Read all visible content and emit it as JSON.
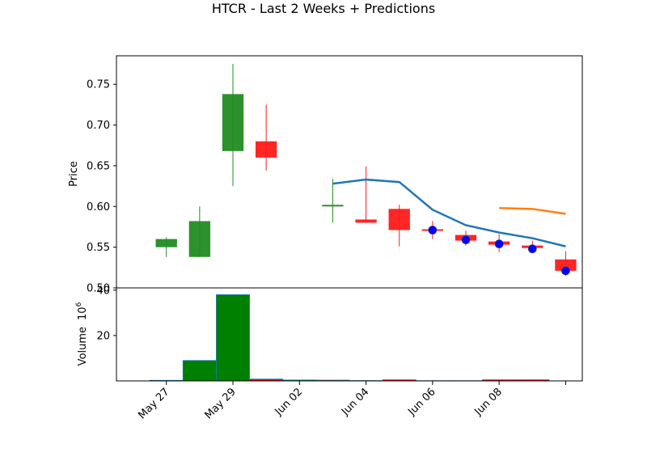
{
  "chart_data": {
    "title": "HTCR - Last 2 Weeks + Predictions",
    "x_ticks": [
      "May 27",
      "May 29",
      "Jun 02",
      "Jun 04",
      "Jun 06",
      "Jun 08"
    ],
    "price_panel": {
      "type": "candlestick",
      "ylabel": "Price",
      "ylim": [
        0.5,
        0.785
      ],
      "y_ticks": [
        "0.50",
        "0.55",
        "0.60",
        "0.65",
        "0.70",
        "0.75"
      ],
      "colors": {
        "up": "#228B22",
        "down": "#ff1a1a",
        "line_blue": "#1f77b4",
        "line_orange": "#ff7f0e",
        "marker": "#0000ff"
      },
      "candles": [
        {
          "x": 1,
          "open": 0.55,
          "high": 0.562,
          "low": 0.538,
          "close": 0.56
        },
        {
          "x": 2,
          "open": 0.538,
          "high": 0.6,
          "low": 0.538,
          "close": 0.582
        },
        {
          "x": 3,
          "open": 0.668,
          "high": 0.775,
          "low": 0.625,
          "close": 0.738
        },
        {
          "x": 4,
          "open": 0.68,
          "high": 0.725,
          "low": 0.644,
          "close": 0.66
        },
        {
          "x": 6,
          "open": 0.6,
          "high": 0.634,
          "low": 0.58,
          "close": 0.602
        },
        {
          "x": 7,
          "open": 0.584,
          "high": 0.649,
          "low": 0.58,
          "close": 0.58
        },
        {
          "x": 8,
          "open": 0.597,
          "high": 0.602,
          "low": 0.551,
          "close": 0.571
        },
        {
          "x": 9,
          "open": 0.572,
          "high": 0.582,
          "low": 0.56,
          "close": 0.57
        },
        {
          "x": 10,
          "open": 0.565,
          "high": 0.57,
          "low": 0.552,
          "close": 0.558
        },
        {
          "x": 11,
          "open": 0.557,
          "high": 0.566,
          "low": 0.544,
          "close": 0.553
        },
        {
          "x": 12,
          "open": 0.552,
          "high": 0.558,
          "low": 0.545,
          "close": 0.549
        },
        {
          "x": 13,
          "open": 0.535,
          "high": 0.545,
          "low": 0.515,
          "close": 0.521
        }
      ],
      "blue_line": [
        [
          6,
          0.628
        ],
        [
          7,
          0.633
        ],
        [
          8,
          0.63
        ],
        [
          9,
          0.596
        ],
        [
          10,
          0.577
        ],
        [
          11,
          0.568
        ],
        [
          12,
          0.561
        ],
        [
          13,
          0.551
        ]
      ],
      "orange_line": [
        [
          11,
          0.598
        ],
        [
          12,
          0.597
        ],
        [
          13,
          0.591
        ]
      ],
      "markers": [
        [
          9,
          0.571
        ],
        [
          10,
          0.559
        ],
        [
          11,
          0.554
        ],
        [
          12,
          0.548
        ],
        [
          13,
          0.521
        ]
      ]
    },
    "volume_panel": {
      "type": "bar",
      "ylabel": "Volume",
      "y_exponent_label": "10",
      "y_exponent_power": "6",
      "ylim": [
        0,
        41
      ],
      "y_ticks": [
        "20",
        "40"
      ],
      "bars": [
        {
          "x": 1,
          "value": 0.25,
          "color": "#008000"
        },
        {
          "x": 2,
          "value": 9.0,
          "color": "#008000"
        },
        {
          "x": 3,
          "value": 38.0,
          "color": "#008000"
        },
        {
          "x": 4,
          "value": 0.8,
          "color": "#ff0000"
        },
        {
          "x": 5,
          "value": 0.4,
          "color": "#008000"
        },
        {
          "x": 6,
          "value": 0.35,
          "color": "#ff0000"
        },
        {
          "x": 7,
          "value": 0.15,
          "color": "#ff0000"
        },
        {
          "x": 8,
          "value": 0.5,
          "color": "#ff0000"
        },
        {
          "x": 9,
          "value": 0.1,
          "color": "#ff0000"
        },
        {
          "x": 10,
          "value": 0.1,
          "color": "#ff0000"
        },
        {
          "x": 11,
          "value": 0.5,
          "color": "#ff0000"
        },
        {
          "x": 12,
          "value": 0.5,
          "color": "#ff0000"
        }
      ]
    }
  }
}
